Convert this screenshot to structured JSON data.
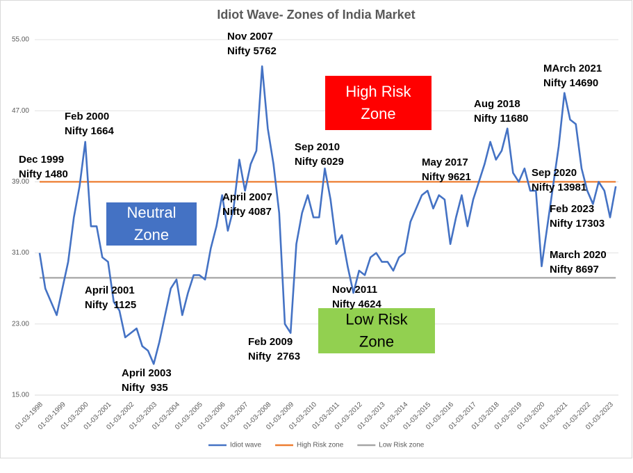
{
  "chart_data": {
    "type": "line",
    "title": "Idiot Wave- Zones of India Market",
    "categories": [
      "01-03-1998",
      null,
      null,
      null,
      "01-03-1999",
      null,
      null,
      null,
      "01-03-2000",
      null,
      null,
      null,
      "01-03-2001",
      null,
      null,
      null,
      "01-03-2002",
      null,
      null,
      null,
      "01-03-2003",
      null,
      null,
      null,
      "01-03-2004",
      null,
      null,
      null,
      "01-03-2005",
      null,
      null,
      null,
      "01-03-2006",
      null,
      null,
      null,
      "01-03-2007",
      null,
      null,
      null,
      "01-03-2008",
      null,
      null,
      null,
      "01-03-2009",
      null,
      null,
      null,
      "01-03-2010",
      null,
      null,
      null,
      "01-03-2011",
      null,
      null,
      null,
      "01-03-2012",
      null,
      null,
      null,
      "01-03-2013",
      null,
      null,
      null,
      "01-03-2014",
      null,
      null,
      null,
      "01-03-2015",
      null,
      null,
      null,
      "01-03-2016",
      null,
      null,
      null,
      "01-03-2017",
      null,
      null,
      null,
      "01-03-2018",
      null,
      null,
      null,
      "01-03-2019",
      null,
      null,
      null,
      "01-03-2020",
      null,
      null,
      null,
      "01-03-2021",
      null,
      null,
      null,
      "01-03-2022",
      null,
      null,
      null,
      "01-03-2023",
      null
    ],
    "series": [
      {
        "name": "Idiot wave",
        "color": "#4472c4",
        "values": [
          31,
          27,
          25.5,
          24,
          27,
          30,
          35,
          38.5,
          43.5,
          34,
          34,
          30.5,
          30,
          25.5,
          24.5,
          21.5,
          22,
          22.5,
          20.5,
          20,
          18.5,
          21,
          24,
          27,
          28,
          24,
          26.5,
          28.5,
          28.5,
          28,
          31.5,
          34,
          37.5,
          33.5,
          36,
          41.5,
          38,
          41,
          42.5,
          52,
          45,
          41,
          35.5,
          23,
          22,
          32,
          35.5,
          37.5,
          35,
          35,
          40.5,
          37,
          32,
          33,
          29.5,
          26.5,
          29,
          28.5,
          30.5,
          31,
          30,
          30,
          29,
          30.5,
          31,
          34.5,
          36,
          37.5,
          38,
          36,
          37.5,
          37,
          32,
          35,
          37.5,
          34,
          37,
          39,
          41,
          43.5,
          41.5,
          42.5,
          45,
          40,
          39,
          40.5,
          38,
          38,
          29.5,
          34,
          38.5,
          43,
          49,
          46,
          45.5,
          40.5,
          38,
          36.5,
          39,
          38,
          35,
          38.5
        ]
      },
      {
        "name": "High Risk zone",
        "color": "#ed7d31",
        "values": [
          39,
          39,
          39,
          39,
          39,
          39,
          39,
          39,
          39,
          39,
          39,
          39,
          39,
          39,
          39,
          39,
          39,
          39,
          39,
          39,
          39,
          39,
          39,
          39,
          39,
          39,
          39,
          39,
          39,
          39,
          39,
          39,
          39,
          39,
          39,
          39,
          39,
          39,
          39,
          39,
          39,
          39,
          39,
          39,
          39,
          39,
          39,
          39,
          39,
          39,
          39,
          39,
          39,
          39,
          39,
          39,
          39,
          39,
          39,
          39,
          39,
          39,
          39,
          39,
          39,
          39,
          39,
          39,
          39,
          39,
          39,
          39,
          39,
          39,
          39,
          39,
          39,
          39,
          39,
          39,
          39,
          39,
          39,
          39,
          39,
          39,
          39,
          39,
          39,
          39,
          39,
          39,
          39,
          39,
          39,
          39,
          39,
          39,
          39,
          39,
          39,
          39
        ]
      },
      {
        "name": "Low Risk zone",
        "color": "#a5a5a5",
        "values": [
          28.2,
          28.2,
          28.2,
          28.2,
          28.2,
          28.2,
          28.2,
          28.2,
          28.2,
          28.2,
          28.2,
          28.2,
          28.2,
          28.2,
          28.2,
          28.2,
          28.2,
          28.2,
          28.2,
          28.2,
          28.2,
          28.2,
          28.2,
          28.2,
          28.2,
          28.2,
          28.2,
          28.2,
          28.2,
          28.2,
          28.2,
          28.2,
          28.2,
          28.2,
          28.2,
          28.2,
          28.2,
          28.2,
          28.2,
          28.2,
          28.2,
          28.2,
          28.2,
          28.2,
          28.2,
          28.2,
          28.2,
          28.2,
          28.2,
          28.2,
          28.2,
          28.2,
          28.2,
          28.2,
          28.2,
          28.2,
          28.2,
          28.2,
          28.2,
          28.2,
          28.2,
          28.2,
          28.2,
          28.2,
          28.2,
          28.2,
          28.2,
          28.2,
          28.2,
          28.2,
          28.2,
          28.2,
          28.2,
          28.2,
          28.2,
          28.2,
          28.2,
          28.2,
          28.2,
          28.2,
          28.2,
          28.2,
          28.2,
          28.2,
          28.2,
          28.2,
          28.2,
          28.2,
          28.2,
          28.2,
          28.2,
          28.2,
          28.2,
          28.2,
          28.2,
          28.2,
          28.2,
          28.2,
          28.2,
          28.2,
          28.2,
          28.2
        ]
      }
    ],
    "ylim": [
      15,
      55
    ],
    "yticks": [
      {
        "value": 15,
        "label": "15.00"
      },
      {
        "value": 23,
        "label": "23.00"
      },
      {
        "value": 31,
        "label": "31.00"
      },
      {
        "value": 39,
        "label": "39.00"
      },
      {
        "value": 47,
        "label": "47.00"
      },
      {
        "value": 55,
        "label": "55.00"
      }
    ],
    "grid": true,
    "legend": "bottom",
    "annotations": [
      [
        "Nov 2007",
        "Nifty 5762"
      ],
      [
        "Feb 2000",
        "Nifty 1664"
      ],
      [
        "Dec 1999",
        "Nifty 1480"
      ],
      [
        "April 2001",
        "Nifty  1125"
      ],
      [
        "April 2003",
        "Nifty  935"
      ],
      [
        "April 2007",
        "Nifty 4087"
      ],
      [
        "Feb 2009",
        "Nifty  2763"
      ],
      [
        "Sep 2010",
        "Nifty 6029"
      ],
      [
        "Nov 2011",
        "Nifty 4624"
      ],
      [
        "May 2017",
        "Nifty 9621"
      ],
      [
        "Aug 2018",
        "Nifty 11680"
      ],
      [
        "MArch 2021",
        "Nifty 14690"
      ],
      [
        "Sep 2020",
        "Nifty 13981"
      ],
      [
        "Feb 2023",
        "Nifty 17303"
      ],
      [
        "March 2020",
        "Nifty 8697"
      ]
    ],
    "zones": [
      {
        "lines": [
          "High Risk",
          "Zone"
        ],
        "color": "#ff0000"
      },
      {
        "lines": [
          "Neutral",
          "Zone"
        ],
        "color": "#4472c4"
      },
      {
        "lines": [
          "Low Risk",
          "Zone"
        ],
        "color": "#92d050"
      }
    ]
  }
}
